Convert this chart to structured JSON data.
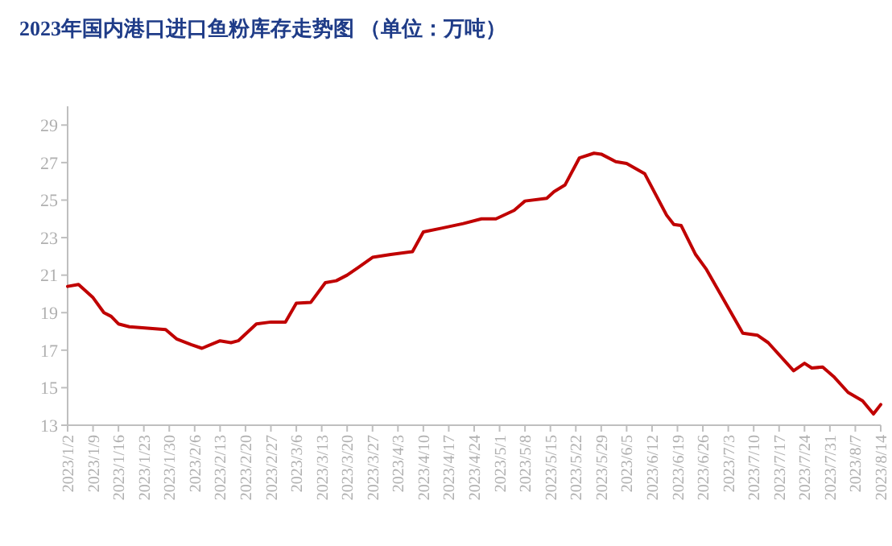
{
  "chart_data": {
    "type": "line",
    "title": "2023年国内港口进口鱼粉库存走势图 （单位：万吨）",
    "x": [
      "2023-01-02",
      "2023-01-05",
      "2023-01-09",
      "2023-01-12",
      "2023-01-14",
      "2023-01-16",
      "2023-01-19",
      "2023-01-29",
      "2023-02-01",
      "2023-02-05",
      "2023-02-08",
      "2023-02-13",
      "2023-02-16",
      "2023-02-18",
      "2023-02-23",
      "2023-02-27",
      "2023-03-03",
      "2023-03-06",
      "2023-03-10",
      "2023-03-14",
      "2023-03-17",
      "2023-03-20",
      "2023-03-23",
      "2023-03-27",
      "2023-04-01",
      "2023-04-07",
      "2023-04-10",
      "2023-04-15",
      "2023-04-21",
      "2023-04-26",
      "2023-04-30",
      "2023-05-05",
      "2023-05-08",
      "2023-05-14",
      "2023-05-16",
      "2023-05-19",
      "2023-05-23",
      "2023-05-27",
      "2023-05-29",
      "2023-06-02",
      "2023-06-05",
      "2023-06-10",
      "2023-06-16",
      "2023-06-18",
      "2023-06-20",
      "2023-06-24",
      "2023-06-27",
      "2023-07-07",
      "2023-07-11",
      "2023-07-14",
      "2023-07-21",
      "2023-07-24",
      "2023-07-26",
      "2023-07-29",
      "2023-08-01",
      "2023-08-05",
      "2023-08-09",
      "2023-08-12",
      "2023-08-14"
    ],
    "series": [
      {
        "color": "#c00000",
        "values": [
          20.4,
          20.5,
          19.8,
          19.0,
          18.8,
          18.4,
          18.25,
          18.1,
          17.6,
          17.3,
          17.1,
          17.5,
          17.4,
          17.5,
          18.4,
          18.5,
          18.5,
          19.5,
          19.55,
          20.6,
          20.7,
          21.0,
          21.4,
          21.95,
          22.1,
          22.25,
          23.3,
          23.5,
          23.75,
          24.0,
          24.0,
          24.45,
          24.95,
          25.1,
          25.45,
          25.8,
          27.25,
          27.5,
          27.45,
          27.05,
          26.95,
          26.4,
          24.2,
          23.7,
          23.65,
          22.1,
          21.3,
          17.9,
          17.8,
          17.4,
          15.9,
          16.3,
          16.05,
          16.1,
          15.6,
          14.75,
          14.3,
          13.6,
          14.1
        ]
      }
    ],
    "xlim": [
      "2023-01-02",
      "2023-08-14"
    ],
    "xticks": [
      {
        "value": "2023-01-02",
        "label": "2023/1/2"
      },
      {
        "value": "2023-01-09",
        "label": "2023/1/9"
      },
      {
        "value": "2023-01-16",
        "label": "2023/1/16"
      },
      {
        "value": "2023-01-23",
        "label": "2023/1/23"
      },
      {
        "value": "2023-01-30",
        "label": "2023/1/30"
      },
      {
        "value": "2023-02-06",
        "label": "2023/2/6"
      },
      {
        "value": "2023-02-13",
        "label": "2023/2/13"
      },
      {
        "value": "2023-02-20",
        "label": "2023/2/20"
      },
      {
        "value": "2023-02-27",
        "label": "2023/2/27"
      },
      {
        "value": "2023-03-06",
        "label": "2023/3/6"
      },
      {
        "value": "2023-03-13",
        "label": "2023/3/13"
      },
      {
        "value": "2023-03-20",
        "label": "2023/3/20"
      },
      {
        "value": "2023-03-27",
        "label": "2023/3/27"
      },
      {
        "value": "2023-04-03",
        "label": "2023/4/3"
      },
      {
        "value": "2023-04-10",
        "label": "2023/4/10"
      },
      {
        "value": "2023-04-17",
        "label": "2023/4/17"
      },
      {
        "value": "2023-04-24",
        "label": "2023/4/24"
      },
      {
        "value": "2023-05-01",
        "label": "2023/5/1"
      },
      {
        "value": "2023-05-08",
        "label": "2023/5/8"
      },
      {
        "value": "2023-05-15",
        "label": "2023/5/15"
      },
      {
        "value": "2023-05-22",
        "label": "2023/5/22"
      },
      {
        "value": "2023-05-29",
        "label": "2023/5/29"
      },
      {
        "value": "2023-06-05",
        "label": "2023/6/5"
      },
      {
        "value": "2023-06-12",
        "label": "2023/6/12"
      },
      {
        "value": "2023-06-19",
        "label": "2023/6/19"
      },
      {
        "value": "2023-06-26",
        "label": "2023/6/26"
      },
      {
        "value": "2023-07-03",
        "label": "2023/7/3"
      },
      {
        "value": "2023-07-10",
        "label": "2023/7/10"
      },
      {
        "value": "2023-07-17",
        "label": "2023/7/17"
      },
      {
        "value": "2023-07-24",
        "label": "2023/7/24"
      },
      {
        "value": "2023-07-31",
        "label": "2023/7/31"
      },
      {
        "value": "2023-08-07",
        "label": "2023/8/7"
      },
      {
        "value": "2023-08-14",
        "label": "2023/8/14"
      }
    ],
    "ylim": [
      13,
      30
    ],
    "yticks": [
      13,
      15,
      17,
      19,
      21,
      23,
      25,
      27,
      29
    ],
    "marker": "none",
    "line_style": "solid"
  }
}
